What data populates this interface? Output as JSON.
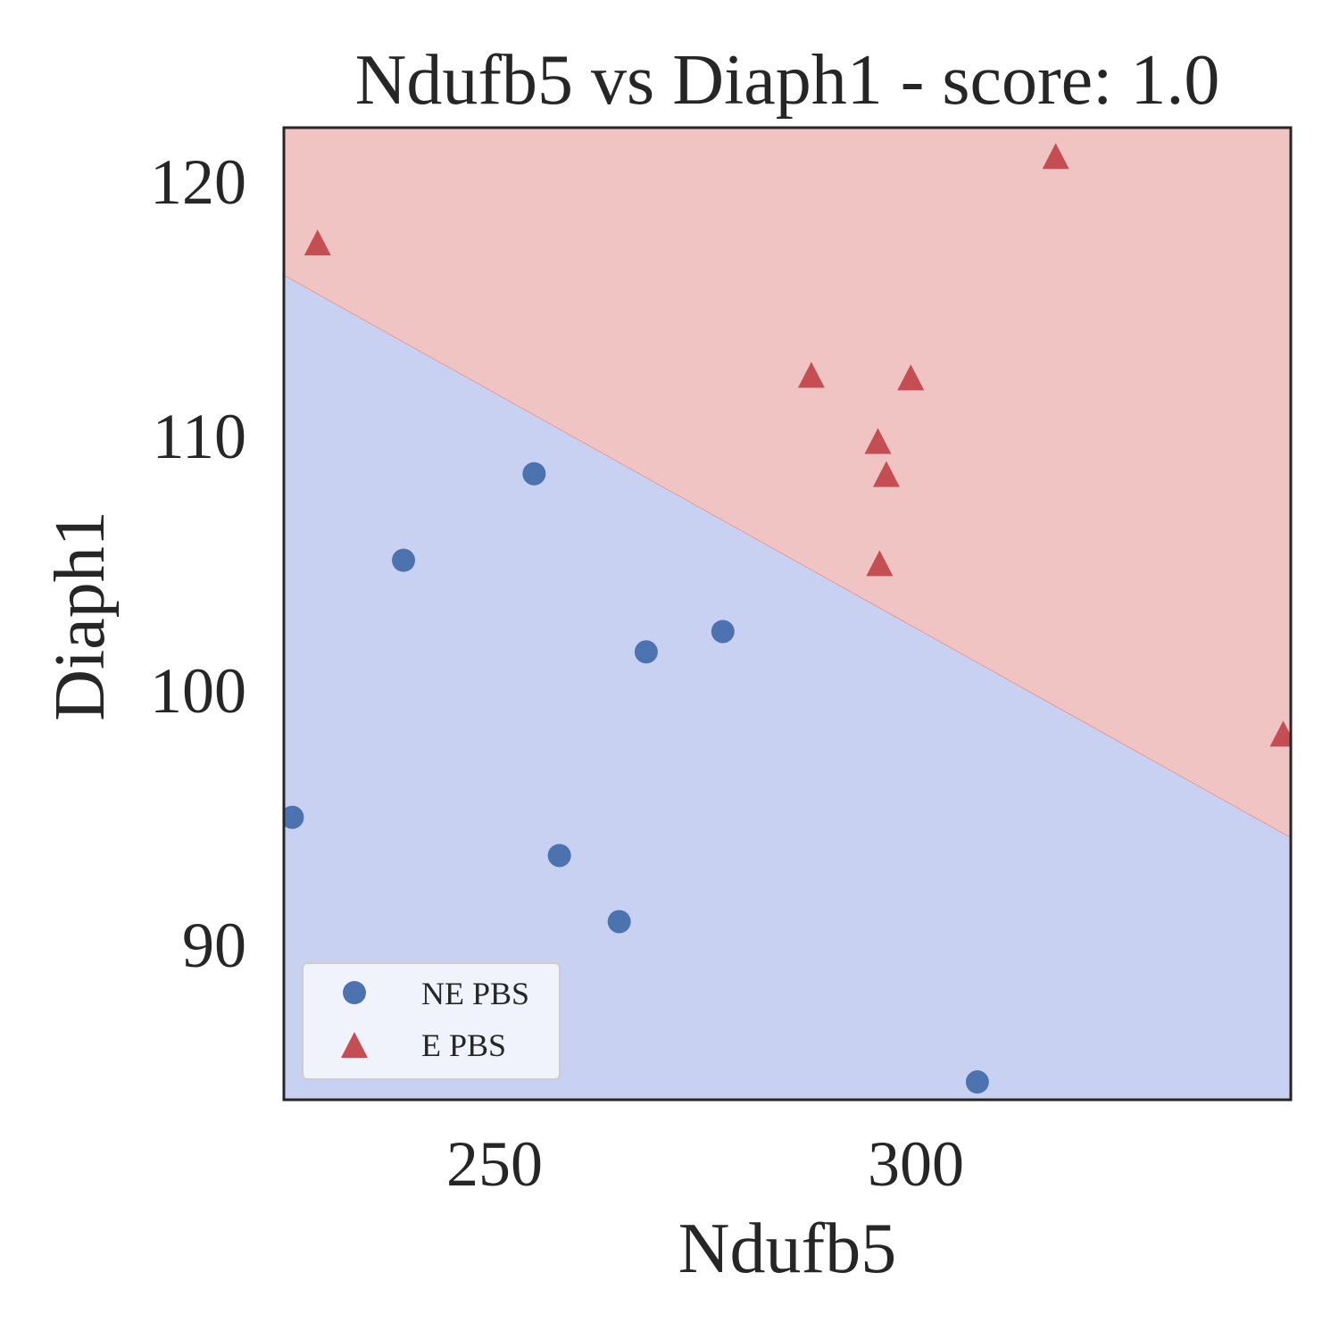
{
  "chart_data": {
    "type": "scatter",
    "title": "Ndufb5 vs Diaph1 - score: 1.0",
    "xlabel": "Ndufb5",
    "ylabel": "Diaph1",
    "xlim": [
      225.0,
      344.5
    ],
    "ylim": [
      83.9,
      122.1
    ],
    "xticks": [
      250,
      300
    ],
    "xtick_labels": [
      "250",
      "300"
    ],
    "yticks": [
      90,
      100,
      110,
      120
    ],
    "ytick_labels": [
      "90",
      "100",
      "110",
      "120"
    ],
    "grid": false,
    "legend_position": "lower-left",
    "decision_boundary": {
      "x": [
        225.0,
        344.5
      ],
      "y": [
        116.3,
        94.2
      ]
    },
    "region_colors": {
      "upper": "#efc4c3",
      "lower": "#c9d1f2"
    },
    "series": [
      {
        "name": "NE PBS",
        "marker": "circle",
        "color": "#4c72b0",
        "points": [
          [
            226.0,
            95.0
          ],
          [
            239.2,
            105.1
          ],
          [
            254.7,
            108.5
          ],
          [
            257.7,
            93.5
          ],
          [
            264.8,
            90.9
          ],
          [
            268.0,
            101.5
          ],
          [
            277.1,
            102.3
          ],
          [
            307.3,
            84.6
          ]
        ]
      },
      {
        "name": "E PBS",
        "marker": "triangle",
        "color": "#c44e52",
        "points": [
          [
            229.0,
            117.5
          ],
          [
            287.6,
            112.3
          ],
          [
            295.5,
            109.7
          ],
          [
            296.5,
            108.4
          ],
          [
            295.7,
            104.9
          ],
          [
            299.4,
            112.2
          ],
          [
            316.6,
            120.9
          ],
          [
            343.6,
            98.2
          ]
        ]
      }
    ]
  }
}
